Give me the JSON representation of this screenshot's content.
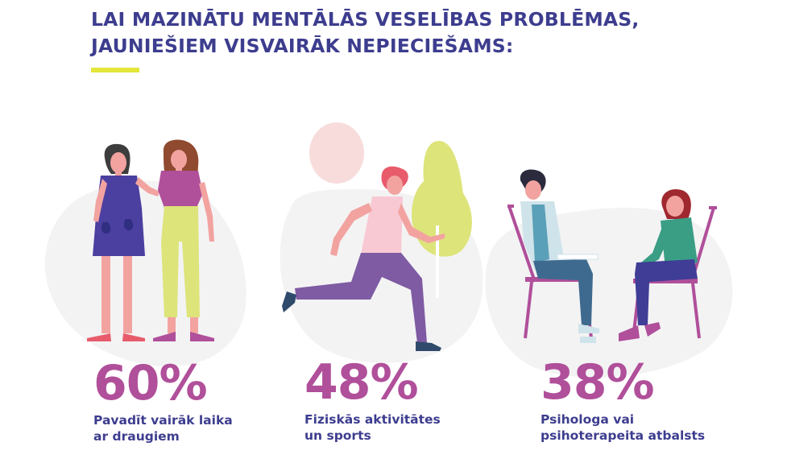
{
  "header": {
    "title_line1": "LAI MAZINĀTU MENTĀLĀS VESELĪBAS PROBLĒMAS,",
    "title_line2": "JAUNIEŠIEM VISVAIRĀK NEPIECIEŠAMS:"
  },
  "stats": [
    {
      "value_label": "60%",
      "line1": "Pavadīt vairāk laika",
      "line2": "ar draugiem",
      "icon": "friends-illustration"
    },
    {
      "value_label": "48%",
      "line1": "Fiziskās aktivitātes",
      "line2": "un sports",
      "icon": "runner-illustration"
    },
    {
      "value_label": "38%",
      "line1": "Psihologa vai",
      "line2": "psihoterapeita atbalsts",
      "icon": "therapy-illustration"
    }
  ],
  "chart_data": {
    "type": "bar",
    "title": "LAI MAZINĀTU MENTĀLĀS VESELĪBAS PROBLĒMAS, JAUNIEŠIEM VISVAIRĀK NEPIECIEŠAMS:",
    "categories": [
      "Pavadīt vairāk laika ar draugiem",
      "Fiziskās aktivitātes un sports",
      "Psihologa vai psihoterapeita atbalsts"
    ],
    "values": [
      60,
      48,
      38
    ],
    "unit": "%"
  },
  "colors": {
    "title": "#3d3d8f",
    "accent": "#e4e63a",
    "stat_value": "#b04f9a",
    "label": "#3d3d8f",
    "blob": "#f3f3f4"
  }
}
